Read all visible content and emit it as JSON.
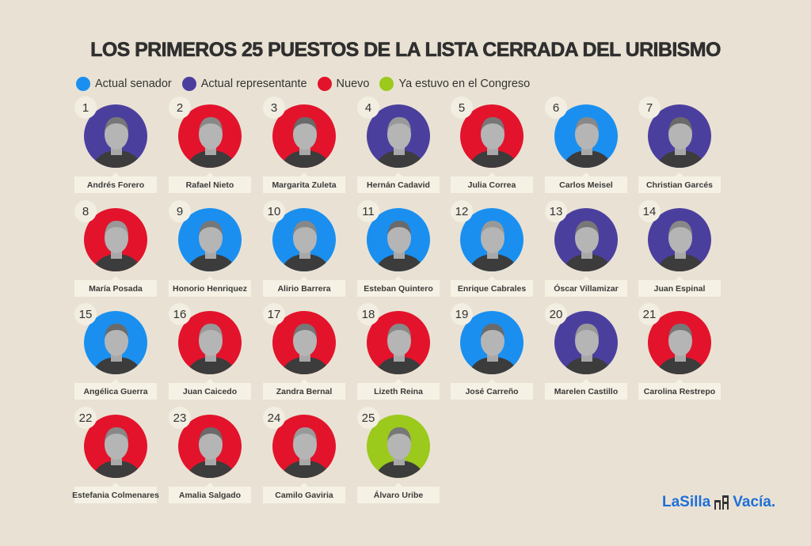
{
  "title": "LOS PRIMEROS 25 PUESTOS DE LA LISTA CERRADA DEL URIBISMO",
  "colors": {
    "senador": "#1a8ff0",
    "representante": "#4b3f9e",
    "nuevo": "#e3132c",
    "congreso": "#9bc91c"
  },
  "legend": [
    {
      "key": "senador",
      "label": "Actual senador"
    },
    {
      "key": "representante",
      "label": "Actual representante"
    },
    {
      "key": "nuevo",
      "label": "Nuevo"
    },
    {
      "key": "congreso",
      "label": "Ya estuvo en el Congreso"
    }
  ],
  "candidates": [
    {
      "num": "1",
      "name": "Andrés Forero",
      "status": "representante"
    },
    {
      "num": "2",
      "name": "Rafael Nieto",
      "status": "nuevo"
    },
    {
      "num": "3",
      "name": "Margarita Zuleta",
      "status": "nuevo"
    },
    {
      "num": "4",
      "name": "Hernán Cadavid",
      "status": "representante"
    },
    {
      "num": "5",
      "name": "Julia Correa",
      "status": "nuevo"
    },
    {
      "num": "6",
      "name": "Carlos Meisel",
      "status": "senador"
    },
    {
      "num": "7",
      "name": "Christian Garcés",
      "status": "representante"
    },
    {
      "num": "8",
      "name": "María Posada",
      "status": "nuevo"
    },
    {
      "num": "9",
      "name": "Honorio Henriquez",
      "status": "senador"
    },
    {
      "num": "10",
      "name": "Alirio Barrera",
      "status": "senador"
    },
    {
      "num": "11",
      "name": "Esteban Quintero",
      "status": "senador"
    },
    {
      "num": "12",
      "name": "Enrique Cabrales",
      "status": "senador"
    },
    {
      "num": "13",
      "name": "Óscar Villamizar",
      "status": "representante"
    },
    {
      "num": "14",
      "name": "Juan Espinal",
      "status": "representante"
    },
    {
      "num": "15",
      "name": "Angélica Guerra",
      "status": "senador"
    },
    {
      "num": "16",
      "name": "Juan Caicedo",
      "status": "nuevo"
    },
    {
      "num": "17",
      "name": "Zandra Bernal",
      "status": "nuevo"
    },
    {
      "num": "18",
      "name": "Lizeth Reina",
      "status": "nuevo"
    },
    {
      "num": "19",
      "name": "José Carreño",
      "status": "senador"
    },
    {
      "num": "20",
      "name": "Marelen Castillo",
      "status": "representante"
    },
    {
      "num": "21",
      "name": "Carolina Restrepo",
      "status": "nuevo"
    },
    {
      "num": "22",
      "name": "Estefania Colmenares",
      "status": "nuevo"
    },
    {
      "num": "23",
      "name": "Amalia Salgado",
      "status": "nuevo"
    },
    {
      "num": "24",
      "name": "Camilo Gaviria",
      "status": "nuevo"
    },
    {
      "num": "25",
      "name": "Álvaro Uribe",
      "status": "congreso"
    }
  ],
  "logo": {
    "left": "LaSilla",
    "right": "Vacía."
  }
}
